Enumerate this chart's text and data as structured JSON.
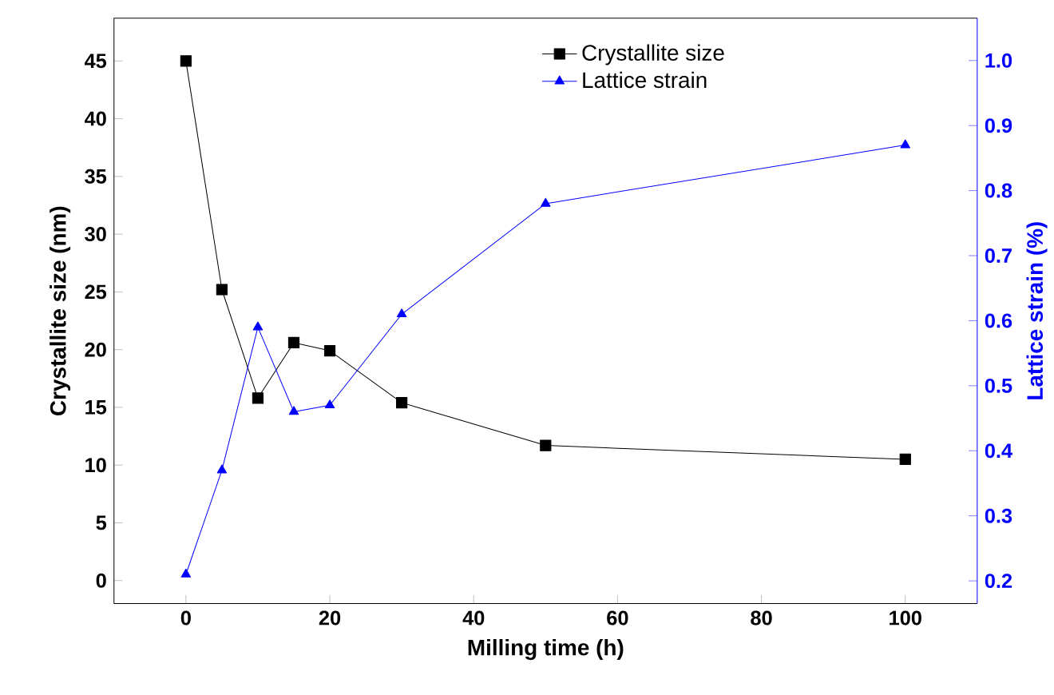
{
  "chart_data": {
    "type": "line",
    "xlabel": "Milling time (h)",
    "ylabel": "Crystallite size (nm)",
    "y2label": "Lattice strain (%)",
    "x": [
      0,
      5,
      10,
      15,
      20,
      30,
      50,
      100
    ],
    "series": [
      {
        "name": "Crystallite size",
        "color": "#000000",
        "marker": "square",
        "values": [
          45,
          25.2,
          15.8,
          20.6,
          19.9,
          15.4,
          11.7,
          10.5
        ]
      },
      {
        "name": "Lattice strain",
        "color": "#0000ff",
        "marker": "triangle",
        "axis": "y2",
        "values": [
          0.21,
          0.37,
          0.59,
          0.46,
          0.47,
          0.61,
          0.78,
          0.87
        ]
      }
    ],
    "xlim": [
      -10,
      110
    ],
    "xticks": [
      0,
      20,
      40,
      60,
      80,
      100
    ],
    "ylim": [
      -2,
      48.7
    ],
    "yticks": [
      0,
      5,
      10,
      15,
      20,
      25,
      30,
      35,
      40,
      45
    ],
    "y2lim": [
      0.165,
      1.065
    ],
    "y2ticks": [
      0.2,
      0.3,
      0.4,
      0.5,
      0.6,
      0.7,
      0.8,
      0.9,
      {
        "value": 1.0,
        "label": "1.0"
      }
    ],
    "legend": "top right"
  }
}
